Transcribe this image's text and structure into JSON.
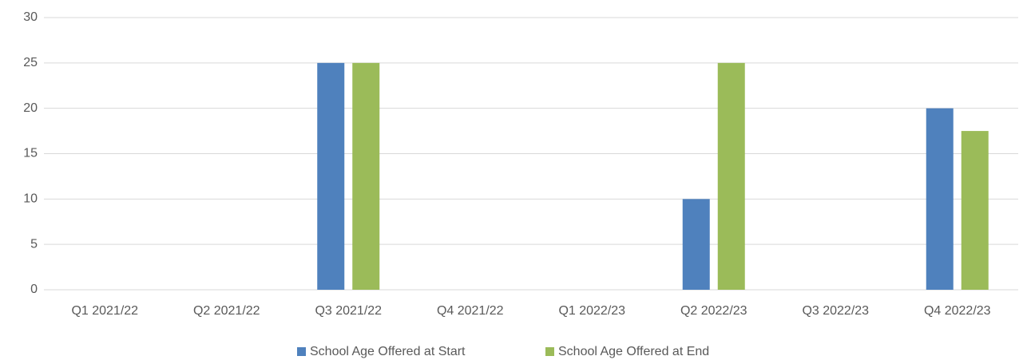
{
  "chart_data": {
    "type": "bar",
    "categories": [
      "Q1 2021/22",
      "Q2 2021/22",
      "Q3 2021/22",
      "Q4 2021/22",
      "Q1 2022/23",
      "Q2 2022/23",
      "Q3 2022/23",
      "Q4 2022/23"
    ],
    "series": [
      {
        "name": "School Age Offered at Start",
        "color": "#4f81bd",
        "values": [
          0,
          0,
          25,
          0,
          0,
          10,
          0,
          20
        ]
      },
      {
        "name": "School Age Offered at End",
        "color": "#9bbb59",
        "values": [
          0,
          0,
          25,
          0,
          0,
          25,
          0,
          17.5
        ]
      }
    ],
    "ylim": [
      0,
      30
    ],
    "yticks": [
      0,
      5,
      10,
      15,
      20,
      25,
      30
    ],
    "grid": true,
    "legend": "bottom"
  }
}
